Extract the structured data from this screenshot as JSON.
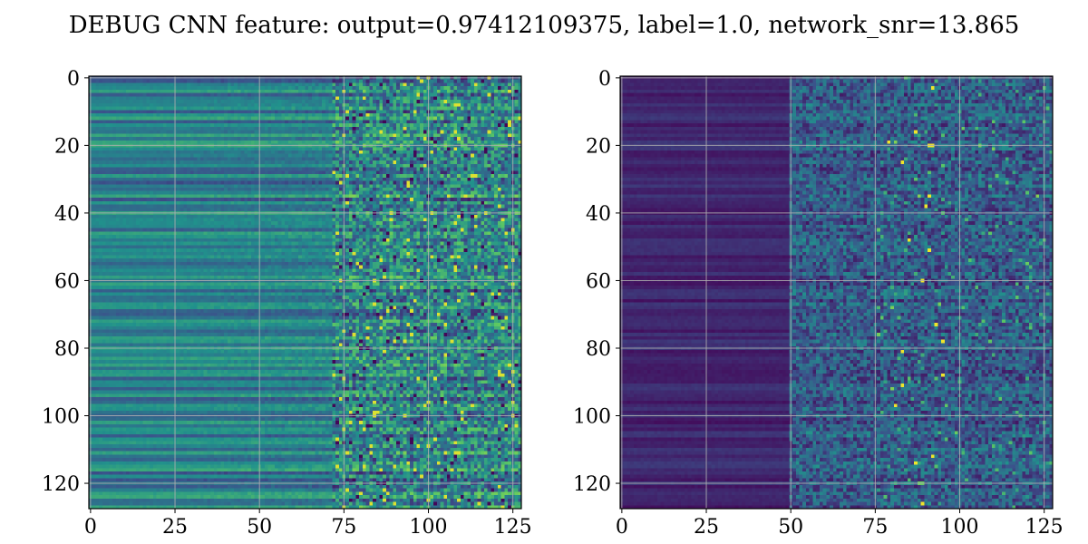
{
  "figure": {
    "title": "DEBUG CNN feature: output=0.97412109375, label=1.0, network_snr=13.865"
  },
  "chart_data": [
    {
      "type": "heatmap",
      "title": "",
      "xlabel": "",
      "ylabel": "",
      "rows": 128,
      "cols": 128,
      "xlim": [
        -0.5,
        127.5
      ],
      "ylim": [
        127.5,
        -0.5
      ],
      "x_ticks": [
        0,
        25,
        50,
        75,
        100,
        125
      ],
      "y_ticks": [
        0,
        20,
        40,
        60,
        80,
        100,
        120
      ],
      "grid": true,
      "colormap": "viridis",
      "colormap_stops": [
        "#440154",
        "#3b528b",
        "#21918c",
        "#5ec962",
        "#fde725"
      ],
      "pattern": "horizontal row bands with moderate teal-green values for columns 0-70, noisier high-contrast values with yellow speckles for columns 75-127",
      "smooth_column_limit": 72,
      "base_level": 0.45
    },
    {
      "type": "heatmap",
      "title": "",
      "xlabel": "",
      "ylabel": "",
      "rows": 128,
      "cols": 128,
      "xlim": [
        -0.5,
        127.5
      ],
      "ylim": [
        127.5,
        -0.5
      ],
      "x_ticks": [
        0,
        25,
        50,
        75,
        100,
        125
      ],
      "y_ticks": [
        0,
        20,
        40,
        60,
        80,
        100,
        120
      ],
      "grid": true,
      "colormap": "viridis",
      "colormap_stops": [
        "#440154",
        "#3b528b",
        "#21918c",
        "#5ec962",
        "#fde725"
      ],
      "pattern": "mostly dark purple low values for columns 0-50, noisy blue-teal speckle values for columns 50-127 with sparse yellow peaks near columns 80-95",
      "smooth_column_limit": 50,
      "base_level": 0.12
    }
  ]
}
